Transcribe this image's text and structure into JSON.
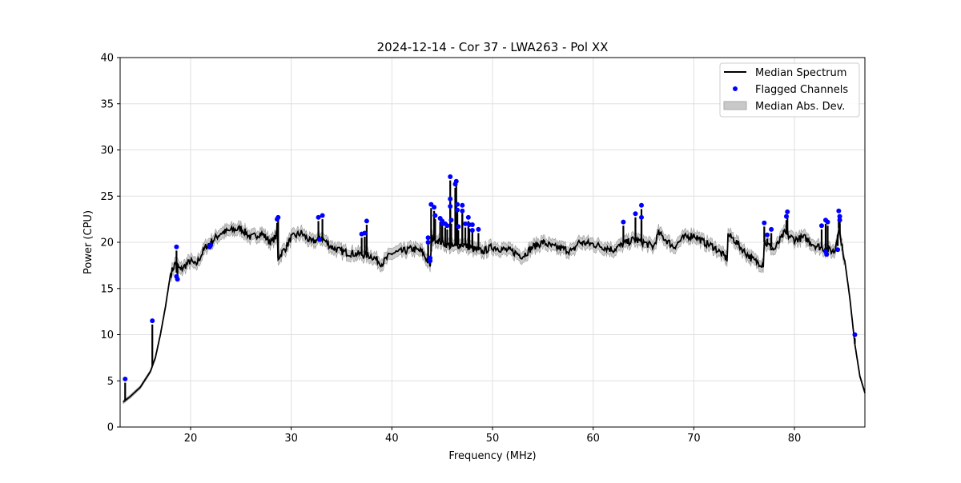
{
  "chart_data": {
    "type": "line",
    "title": "2024-12-14 - Cor 37 - LWA263 - Pol XX",
    "xlabel": "Frequency (MHz)",
    "ylabel": "Power (CPU)",
    "xlim": [
      13,
      87
    ],
    "ylim": [
      0,
      40
    ],
    "xticks": [
      20,
      30,
      40,
      50,
      60,
      70,
      80
    ],
    "yticks": [
      0,
      5,
      10,
      15,
      20,
      25,
      30,
      35,
      40
    ],
    "grid": true,
    "legend": {
      "placement": "top-right",
      "entries": [
        "Median Spectrum",
        "Flagged Channels",
        "Median Abs. Dev."
      ]
    },
    "colors": {
      "spectrum": "#000000",
      "flagged": "#0000ff",
      "mad": "#bbbbbb"
    },
    "mad_halfwidth": 0.6,
    "series": [
      {
        "name": "Median Spectrum",
        "x": [
          13.3,
          14,
          15,
          16,
          16.5,
          17,
          17.5,
          18,
          18.5,
          19,
          19.5,
          20,
          20.5,
          21,
          21.5,
          22,
          22.5,
          23,
          24,
          25,
          26,
          27,
          28,
          28.6,
          28.7,
          29.5,
          30,
          31,
          32,
          33,
          34,
          35,
          36,
          37,
          38,
          39,
          40,
          41,
          42,
          43,
          43.8,
          44,
          45,
          46,
          47,
          48,
          49,
          50,
          52,
          53,
          54,
          55,
          56,
          57,
          58,
          58.5,
          60,
          61,
          62,
          63,
          64,
          65,
          66,
          66.5,
          67,
          68,
          69,
          70,
          71,
          72,
          73,
          73.3,
          73.4,
          74,
          75,
          76,
          76.9,
          77,
          78,
          79,
          80,
          81,
          82,
          83,
          84,
          84.4,
          85,
          85.5,
          86,
          86.5,
          87
        ],
        "y": [
          2.7,
          3.3,
          4.3,
          6,
          7.5,
          10,
          13,
          16.5,
          17.8,
          17,
          17.5,
          18,
          17.5,
          18.5,
          19.5,
          20,
          20.5,
          21,
          21.3,
          21.5,
          20.5,
          21,
          20,
          20.8,
          18.3,
          19.5,
          20.5,
          21,
          20,
          20.5,
          19.5,
          19,
          18.8,
          18.7,
          18.5,
          17.7,
          18.8,
          19,
          19.3,
          19,
          17.5,
          20.5,
          20,
          19.5,
          19.8,
          19.3,
          19,
          19.5,
          19,
          18.5,
          19.5,
          20,
          19.5,
          19.3,
          19,
          20,
          19.8,
          19.5,
          19.2,
          19.8,
          20.3,
          20,
          19.5,
          21,
          20.5,
          19.5,
          20.5,
          20.8,
          20,
          19.5,
          18.5,
          18.2,
          20.8,
          20.3,
          19,
          18,
          17.6,
          20,
          19.2,
          21,
          20.3,
          20.5,
          19.7,
          19.3,
          19,
          21.5,
          18,
          14,
          9,
          5.5,
          3.7
        ]
      },
      {
        "name": "Flagged Channels",
        "x": [
          13.5,
          16.2,
          18.6,
          18.6,
          18.7,
          21.9,
          22,
          28.6,
          28.7,
          32.7,
          33.1,
          32.8,
          37,
          37.3,
          37.5,
          43.6,
          43.6,
          43.8,
          43.8,
          43.9,
          44.2,
          44.3,
          44.8,
          45,
          45,
          45.3,
          45.5,
          45.8,
          45.8,
          45.8,
          45.9,
          46.3,
          46.4,
          46.5,
          46.5,
          46.6,
          47,
          47,
          47.3,
          47.6,
          47.7,
          48,
          48,
          48.6,
          63,
          64.2,
          64.8,
          64.8,
          77,
          77.3,
          77.7,
          79.2,
          79.3,
          82.7,
          83.1,
          83.3,
          83.1,
          83.2,
          84.4,
          84.5,
          84.5,
          84.3,
          86
        ],
        "y": [
          5.2,
          11.5,
          19.5,
          16.3,
          16,
          19.5,
          19.7,
          22.5,
          22.7,
          22.7,
          22.9,
          20.3,
          20.9,
          21,
          22.3,
          20.5,
          20,
          18.3,
          18,
          24.1,
          23.8,
          22.9,
          22.6,
          22.3,
          22,
          22,
          21.8,
          27.1,
          24.7,
          23.9,
          22.4,
          26.3,
          26.6,
          24.1,
          23.5,
          21.7,
          24,
          23.4,
          22,
          22.7,
          21.9,
          21.9,
          21.3,
          21.4,
          22.2,
          23.1,
          24,
          22.7,
          22.1,
          20.8,
          21.4,
          22.8,
          23.3,
          21.8,
          22.4,
          22.2,
          19,
          18.7,
          23.4,
          22.8,
          22.4,
          19.2,
          10
        ]
      }
    ]
  }
}
